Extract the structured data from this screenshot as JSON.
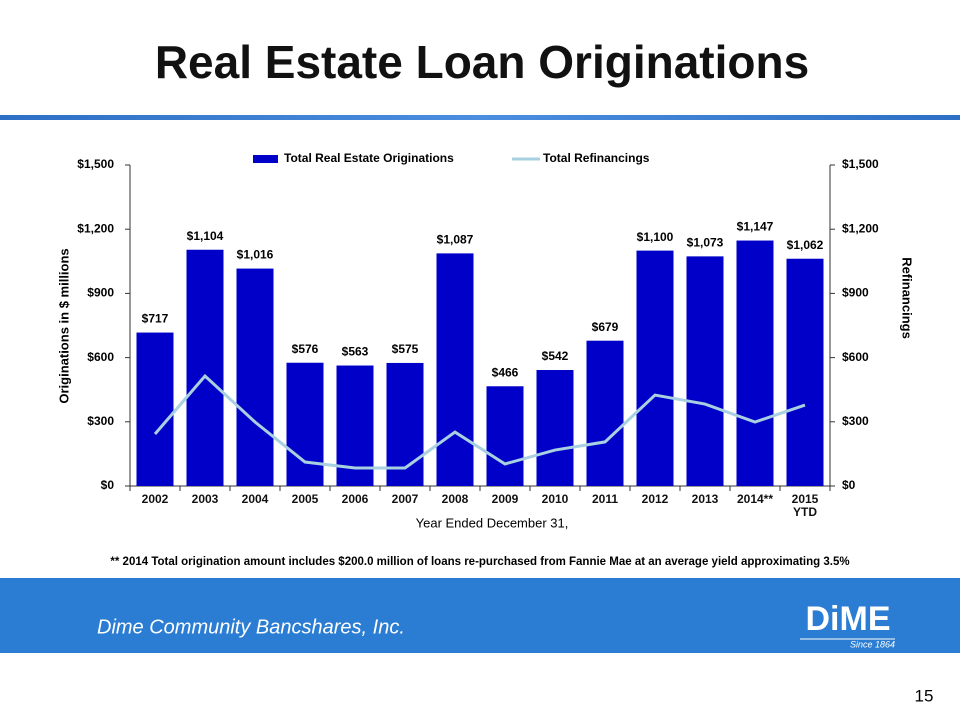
{
  "slide": {
    "title": "Real Estate Loan Originations",
    "footnote": "** 2014 Total origination amount includes $200.0 million of loans re-purchased from Fannie Mae at an average yield approximating 3.5%",
    "company": "Dime Community Bancshares, Inc.",
    "logo": "DiME",
    "logo_tagline": "Since 1864",
    "page_number": "15"
  },
  "chart_data": {
    "type": "bar",
    "categories": [
      "2002",
      "2003",
      "2004",
      "2005",
      "2006",
      "2007",
      "2008",
      "2009",
      "2010",
      "2011",
      "2012",
      "2013",
      "2014**",
      "2015 YTD"
    ],
    "x_label": "Year Ended December 31,",
    "y_label": "Originations in $ millions",
    "y2_label": "Refinancings",
    "series": [
      {
        "name": "Total Real Estate Originations",
        "type": "bar",
        "color": "#0000c8",
        "values": [
          717,
          1104,
          1016,
          576,
          563,
          575,
          1087,
          466,
          542,
          679,
          1100,
          1073,
          1147,
          1062
        ],
        "value_labels": [
          "$717",
          "$1,104",
          "$1,016",
          "$576",
          "$563",
          "$575",
          "$1,087",
          "$466",
          "$542",
          "$679",
          "$1,100",
          "$1,073",
          "$1,147",
          "$1,062"
        ]
      },
      {
        "name": "Total Refinancings",
        "type": "line",
        "axis": "y2",
        "color": "#a8d0e0",
        "values": [
          243,
          514,
          299,
          112,
          84,
          84,
          252,
          103,
          168,
          206,
          425,
          383,
          299,
          378
        ]
      }
    ],
    "ylim": [
      0,
      1500
    ],
    "yticks": [
      {
        "value": 0,
        "label": "$0"
      },
      {
        "value": 300,
        "label": "$300"
      },
      {
        "value": 600,
        "label": "$600"
      },
      {
        "value": 900,
        "label": "$900"
      },
      {
        "value": 1200,
        "label": "$1,200"
      },
      {
        "value": 1500,
        "label": "$1,500"
      }
    ],
    "y2lim": [
      0,
      1500
    ],
    "y2ticks": [
      {
        "value": 0,
        "label": "$0"
      },
      {
        "value": 300,
        "label": "$300"
      },
      {
        "value": 600,
        "label": "$600"
      },
      {
        "value": 900,
        "label": "$900"
      },
      {
        "value": 1200,
        "label": "$1,200"
      },
      {
        "value": 1500,
        "label": "$1,500"
      }
    ],
    "legend": "top"
  }
}
